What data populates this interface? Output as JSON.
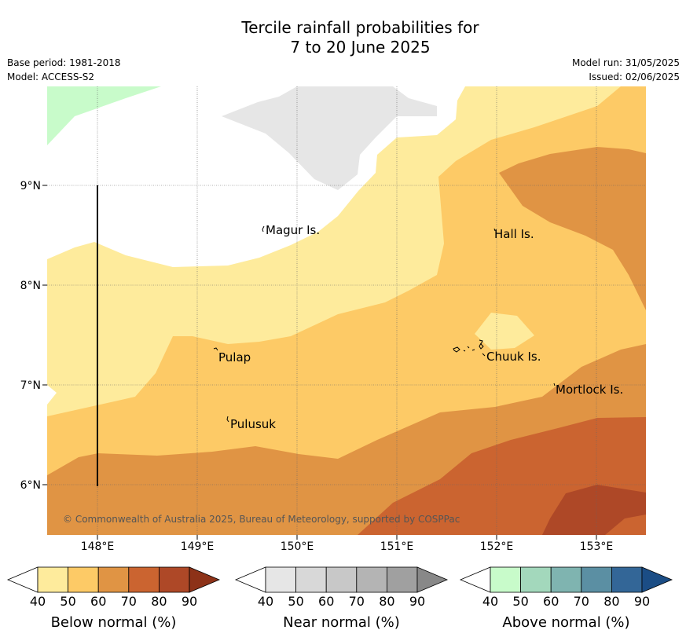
{
  "header": {
    "title_line1": "Tercile rainfall probabilities for",
    "title_line2": "7 to 20 June 2025",
    "base_period": "Base period: 1981-2018",
    "model": "Model: ACCESS-S2",
    "model_run": "Model run: 31/05/2025",
    "issued": "Issued: 02/06/2025"
  },
  "map": {
    "lon_ticks": [
      "148°E",
      "149°E",
      "150°E",
      "151°E",
      "152°E",
      "153°E"
    ],
    "lat_ticks": [
      "9°N",
      "8°N",
      "7°N",
      "6°N"
    ],
    "places": [
      "Magur Is.",
      "Hall Is.",
      "Pulap",
      "Chuuk Is.",
      "Mortlock Is.",
      "Pulusuk"
    ],
    "copyright": "© Commonwealth of Australia 2025, Bureau of Meteorology, supported by COSPPac"
  },
  "colorbars": [
    {
      "title": "Below normal (%)",
      "ticks": [
        "40",
        "50",
        "60",
        "70",
        "80",
        "90"
      ],
      "colors": [
        "#ffffff",
        "#feeb9c",
        "#fdca66",
        "#e09444",
        "#cb6430",
        "#ae4827",
        "#8d3218"
      ]
    },
    {
      "title": "Near normal (%)",
      "ticks": [
        "40",
        "50",
        "60",
        "70",
        "80",
        "90"
      ],
      "colors": [
        "#ffffff",
        "#e6e6e6",
        "#d8d8d8",
        "#c8c8c8",
        "#b4b4b4",
        "#a0a0a0",
        "#888888"
      ]
    },
    {
      "title": "Above normal (%)",
      "ticks": [
        "40",
        "50",
        "60",
        "70",
        "80",
        "90"
      ],
      "colors": [
        "#ffffff",
        "#c8fbca",
        "#a3d8bc",
        "#7fb4b0",
        "#5b8fa3",
        "#336697",
        "#1b4d85"
      ]
    }
  ]
}
